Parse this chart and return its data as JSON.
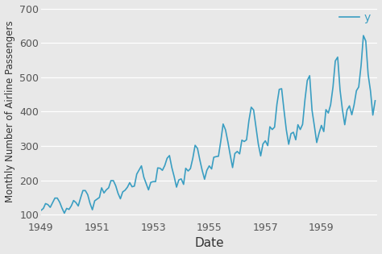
{
  "passengers": [
    112,
    118,
    132,
    129,
    121,
    135,
    148,
    148,
    136,
    119,
    104,
    118,
    115,
    126,
    141,
    135,
    125,
    149,
    170,
    170,
    158,
    133,
    114,
    140,
    145,
    150,
    178,
    163,
    172,
    178,
    199,
    199,
    184,
    162,
    146,
    166,
    171,
    180,
    193,
    181,
    183,
    218,
    230,
    242,
    209,
    191,
    172,
    194,
    196,
    196,
    236,
    235,
    229,
    243,
    264,
    272,
    237,
    211,
    180,
    201,
    204,
    188,
    235,
    227,
    234,
    264,
    302,
    293,
    259,
    229,
    203,
    229,
    242,
    233,
    267,
    269,
    270,
    315,
    364,
    347,
    312,
    274,
    237,
    278,
    284,
    277,
    317,
    313,
    318,
    374,
    413,
    405,
    355,
    306,
    271,
    306,
    315,
    301,
    356,
    348,
    355,
    422,
    465,
    467,
    404,
    347,
    305,
    336,
    340,
    318,
    362,
    348,
    363,
    435,
    491,
    505,
    404,
    359,
    310,
    337,
    360,
    342,
    406,
    396,
    420,
    472,
    548,
    559,
    463,
    407,
    362,
    405,
    417,
    391,
    419,
    461,
    472,
    535,
    622,
    606,
    508,
    461,
    390,
    432
  ],
  "start_year": 1949,
  "xlabel": "Date",
  "ylabel": "Monthly Number of Airline Passengers",
  "line_color": "#3a9ec2",
  "line_width": 1.2,
  "legend_label": "y",
  "bg_color": "#e8e8e8",
  "grid_color": "#ffffff",
  "yticks": [
    100,
    200,
    300,
    400,
    500,
    600,
    700
  ],
  "xtick_years": [
    1949,
    1951,
    1953,
    1955,
    1957,
    1959
  ],
  "ylim": [
    90,
    710
  ],
  "figsize": [
    4.74,
    3.15
  ],
  "dpi": 100,
  "xlabel_fontsize": 11,
  "ylabel_fontsize": 8.5,
  "tick_labelsize": 9,
  "legend_fontsize": 10
}
